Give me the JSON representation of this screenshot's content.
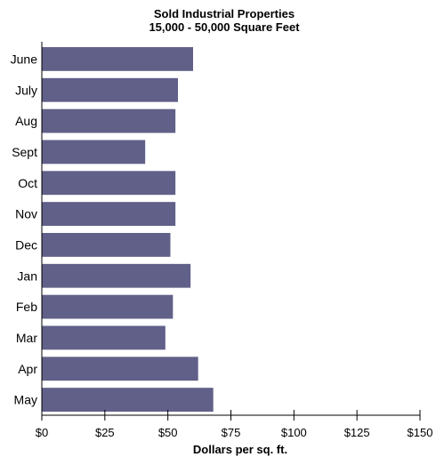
{
  "chart_data": {
    "type": "bar",
    "orientation": "horizontal",
    "title": "Sold Industrial Properties",
    "subtitle": "15,000 - 50,000 Square Feet",
    "xlabel": "Dollars per sq. ft.",
    "ylabel": "",
    "categories": [
      "June",
      "July",
      "Aug",
      "Sept",
      "Oct",
      "Nov",
      "Dec",
      "Jan",
      "Feb",
      "Mar",
      "Apr",
      "May"
    ],
    "values": [
      60,
      54,
      53,
      41,
      53,
      53,
      51,
      59,
      52,
      49,
      62,
      68
    ],
    "xlim": [
      0,
      150
    ],
    "x_ticks": [
      "$0",
      "$25",
      "$50",
      "$75",
      "$100",
      "$125",
      "$150"
    ],
    "x_tick_values": [
      0,
      25,
      50,
      75,
      100,
      125,
      150
    ],
    "bar_color": "#606089",
    "grid": false,
    "legend": "none"
  }
}
